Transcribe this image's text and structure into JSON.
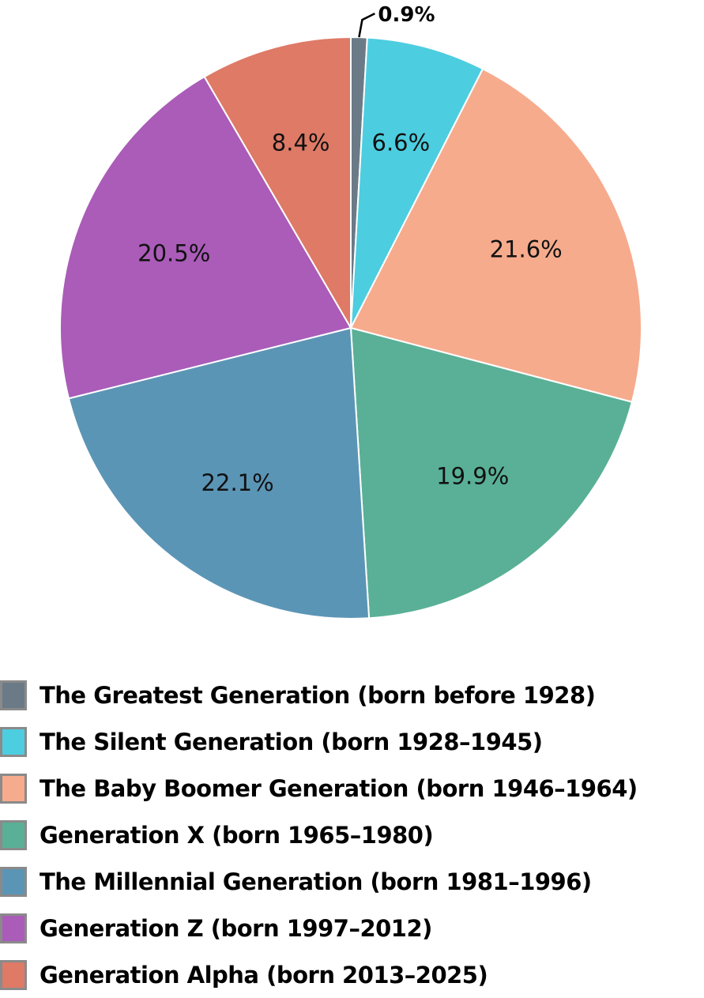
{
  "chart_data": {
    "type": "pie",
    "title": "",
    "start_angle_deg": 0,
    "direction": "clockwise",
    "slices": [
      {
        "name": "The Greatest Generation (born before 1928)",
        "value": 0.9,
        "label": "0.9%",
        "color": "#6b7a87"
      },
      {
        "name": "The Silent Generation (born 1928–1945)",
        "value": 6.6,
        "label": "6.6%",
        "color": "#4dcde0"
      },
      {
        "name": "The Baby Boomer Generation (born 1946–1964)",
        "value": 21.6,
        "label": "21.6%",
        "color": "#f6ab8d"
      },
      {
        "name": "Generation X (born 1965–1980)",
        "value": 19.9,
        "label": "19.9%",
        "color": "#59b096"
      },
      {
        "name": "The Millennial Generation (born 1981–1996)",
        "value": 22.1,
        "label": "22.1%",
        "color": "#5b95b6"
      },
      {
        "name": "Generation Z (born 1997–2012)",
        "value": 20.5,
        "label": "20.5%",
        "color": "#aa5cb8"
      },
      {
        "name": "Generation Alpha (born 2013–2025)",
        "value": 8.4,
        "label": "8.4%",
        "color": "#de7a66"
      }
    ],
    "legend_position": "bottom"
  },
  "legend": {
    "items": [
      {
        "label": "The Greatest Generation (born before 1928)",
        "color": "#6b7a87"
      },
      {
        "label": "The Silent Generation (born 1928–1945)",
        "color": "#4dcde0"
      },
      {
        "label": "The Baby Boomer Generation (born 1946–1964)",
        "color": "#f6ab8d"
      },
      {
        "label": "Generation X (born 1965–1980)",
        "color": "#59b096"
      },
      {
        "label": "The Millennial Generation (born 1981–1996)",
        "color": "#5b95b6"
      },
      {
        "label": "Generation Z (born 1997–2012)",
        "color": "#aa5cb8"
      },
      {
        "label": "Generation Alpha (born 2013–2025)",
        "color": "#de7a66"
      }
    ]
  }
}
